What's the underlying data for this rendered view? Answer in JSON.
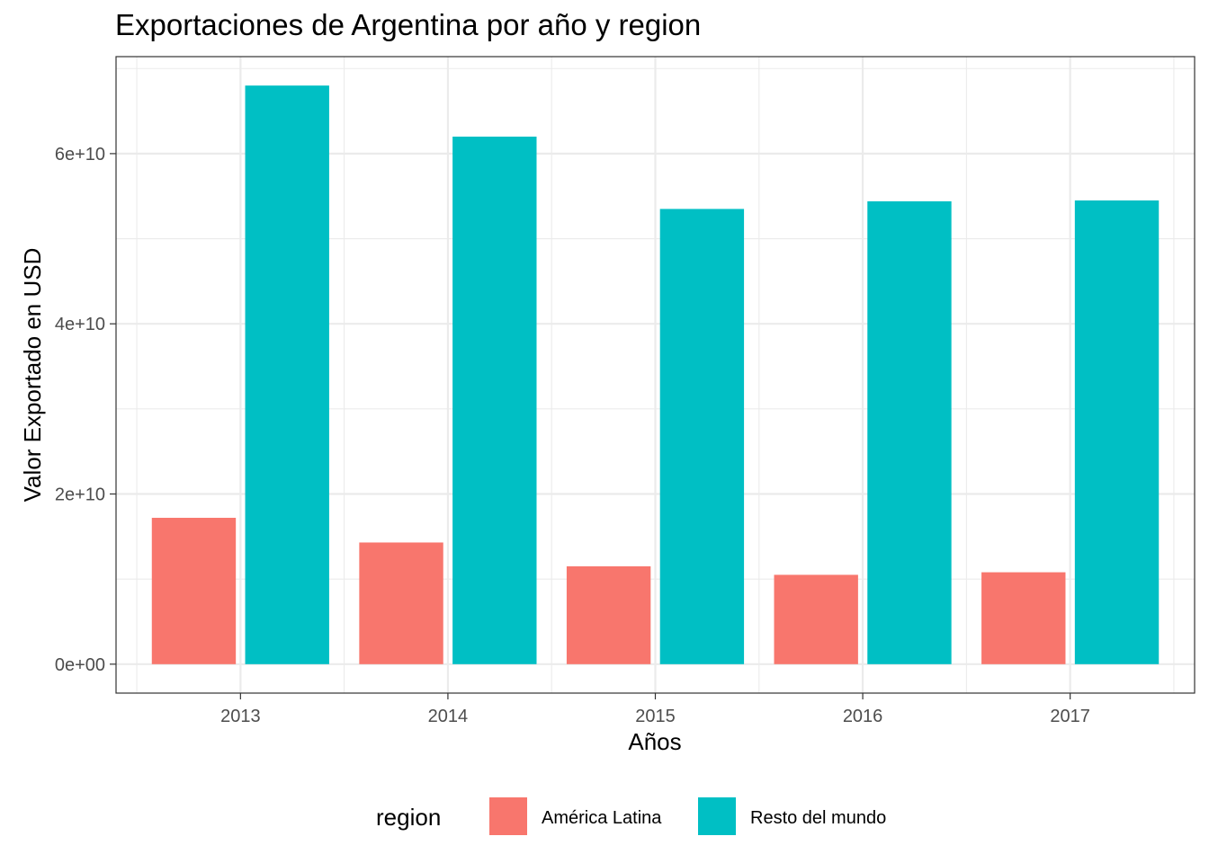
{
  "chart_data": {
    "type": "bar",
    "title": "Exportaciones de Argentina por año y region",
    "xlabel": "Años",
    "ylabel": "Valor Exportado en USD",
    "categories": [
      "2013",
      "2014",
      "2015",
      "2016",
      "2017"
    ],
    "series": [
      {
        "name": "América Latina",
        "color": "#F8766D",
        "values": [
          17200000000,
          14300000000,
          11500000000,
          10500000000,
          10800000000
        ]
      },
      {
        "name": "Resto del mundo",
        "color": "#00BFC4",
        "values": [
          68000000000,
          62000000000,
          53500000000,
          54400000000,
          54500000000
        ]
      }
    ],
    "ylim": [
      -3400000000,
      71400000000
    ],
    "yticks": [
      0,
      20000000000,
      40000000000,
      60000000000
    ],
    "ytick_labels": [
      "0e+00",
      "2e+10",
      "4e+10",
      "6e+10"
    ],
    "grid": true,
    "legend": {
      "title": "region",
      "position": "bottom"
    }
  }
}
